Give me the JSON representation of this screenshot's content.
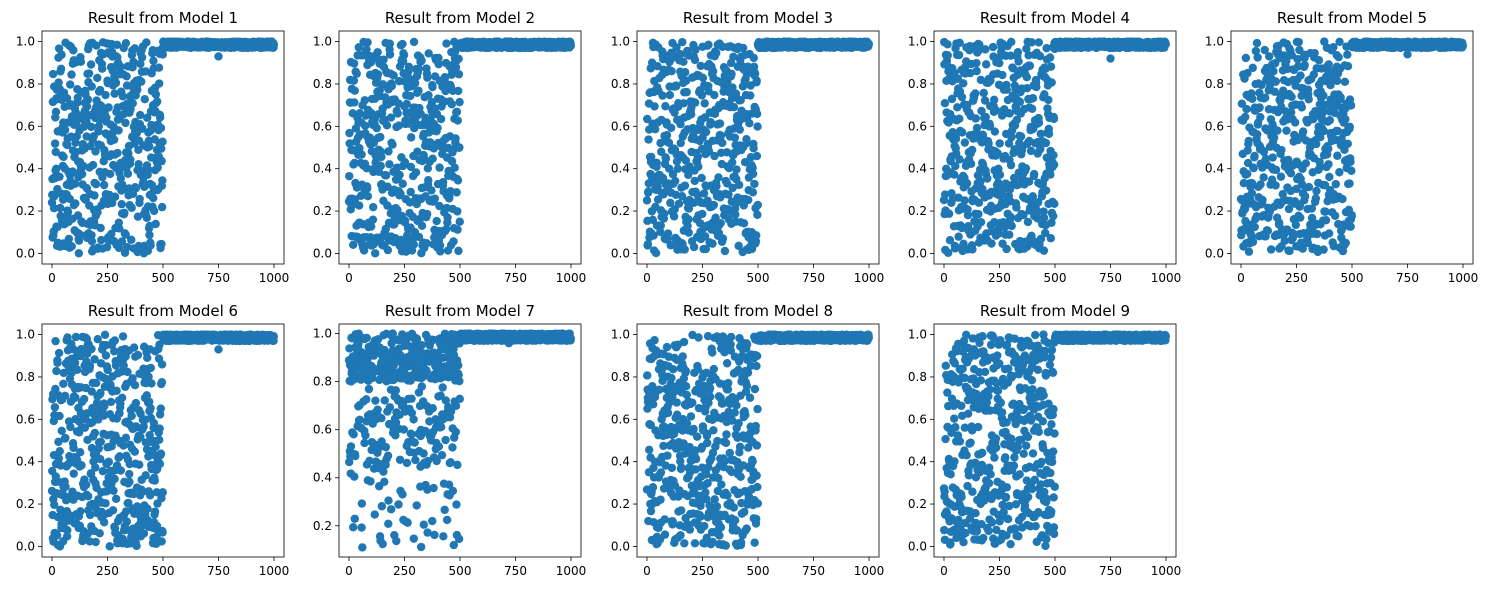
{
  "chart_data": [
    {
      "type": "scatter",
      "title": "Result from Model 1",
      "xlim": [
        -45,
        1045
      ],
      "ylim": [
        -0.05,
        1.05
      ],
      "xticks": [
        0,
        250,
        500,
        750,
        1000
      ],
      "yticks": [
        0.0,
        0.2,
        0.4,
        0.6,
        0.8,
        1.0
      ],
      "outliers": [
        [
          750,
          0.93
        ]
      ],
      "seed": 11
    },
    {
      "type": "scatter",
      "title": "Result from Model 2",
      "xlim": [
        -45,
        1045
      ],
      "ylim": [
        -0.05,
        1.05
      ],
      "xticks": [
        0,
        250,
        500,
        750,
        1000
      ],
      "yticks": [
        0.0,
        0.2,
        0.4,
        0.6,
        0.8,
        1.0
      ],
      "outliers": [],
      "seed": 23
    },
    {
      "type": "scatter",
      "title": "Result from Model 3",
      "xlim": [
        -45,
        1045
      ],
      "ylim": [
        -0.05,
        1.05
      ],
      "xticks": [
        0,
        250,
        500,
        750,
        1000
      ],
      "yticks": [
        0.0,
        0.2,
        0.4,
        0.6,
        0.8,
        1.0
      ],
      "outliers": [],
      "seed": 37
    },
    {
      "type": "scatter",
      "title": "Result from Model 4",
      "xlim": [
        -45,
        1045
      ],
      "ylim": [
        -0.05,
        1.05
      ],
      "xticks": [
        0,
        250,
        500,
        750,
        1000
      ],
      "yticks": [
        0.0,
        0.2,
        0.4,
        0.6,
        0.8,
        1.0
      ],
      "outliers": [
        [
          750,
          0.92
        ]
      ],
      "seed": 41
    },
    {
      "type": "scatter",
      "title": "Result from Model 5",
      "xlim": [
        -45,
        1045
      ],
      "ylim": [
        -0.05,
        1.05
      ],
      "xticks": [
        0,
        250,
        500,
        750,
        1000
      ],
      "yticks": [
        0.0,
        0.2,
        0.4,
        0.6,
        0.8,
        1.0
      ],
      "outliers": [
        [
          750,
          0.94
        ]
      ],
      "seed": 53
    },
    {
      "type": "scatter",
      "title": "Result from Model 6",
      "xlim": [
        -45,
        1045
      ],
      "ylim": [
        -0.05,
        1.05
      ],
      "xticks": [
        0,
        250,
        500,
        750,
        1000
      ],
      "yticks": [
        0.0,
        0.2,
        0.4,
        0.6,
        0.8,
        1.0
      ],
      "outliers": [
        [
          750,
          0.93
        ]
      ],
      "seed": 67
    },
    {
      "type": "scatter",
      "title": "Result from Model 7",
      "xlim": [
        -45,
        1045
      ],
      "ylim": [
        0.07,
        1.04
      ],
      "xticks": [
        0,
        250,
        500,
        750,
        1000
      ],
      "yticks": [
        0.2,
        0.4,
        0.6,
        0.8,
        1.0
      ],
      "outliers": [
        [
          720,
          0.96
        ],
        [
          60,
          0.11
        ]
      ],
      "lowmin": 0.11,
      "seed": 79
    },
    {
      "type": "scatter",
      "title": "Result from Model 8",
      "xlim": [
        -45,
        1045
      ],
      "ylim": [
        -0.05,
        1.05
      ],
      "xticks": [
        0,
        250,
        500,
        750,
        1000
      ],
      "yticks": [
        0.0,
        0.2,
        0.4,
        0.6,
        0.8,
        1.0
      ],
      "outliers": [],
      "seed": 83
    },
    {
      "type": "scatter",
      "title": "Result from Model 9",
      "xlim": [
        -45,
        1045
      ],
      "ylim": [
        -0.05,
        1.05
      ],
      "xticks": [
        0,
        250,
        500,
        750,
        1000
      ],
      "yticks": [
        0.0,
        0.2,
        0.4,
        0.6,
        0.8,
        1.0
      ],
      "outliers": [],
      "seed": 97
    }
  ],
  "marker_color": "#1f77b4"
}
